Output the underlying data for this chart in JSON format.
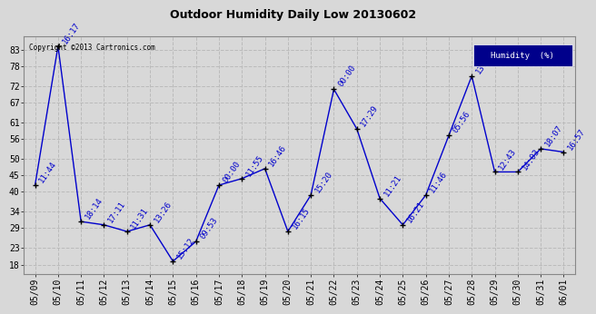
{
  "title": "Outdoor Humidity Daily Low 20130602",
  "copyright_text": "Copyright ©2013 Cartronics.com",
  "legend_label": "Humidity  (%)",
  "background_color": "#d8d8d8",
  "plot_bg_color": "#d8d8d8",
  "line_color": "#0000cc",
  "marker_color": "#000000",
  "legend_bg": "#00008b",
  "legend_fg": "#ffffff",
  "dates": [
    "05/09",
    "05/10",
    "05/11",
    "05/12",
    "05/13",
    "05/14",
    "05/15",
    "05/16",
    "05/17",
    "05/18",
    "05/19",
    "05/20",
    "05/21",
    "05/22",
    "05/23",
    "05/24",
    "05/25",
    "05/26",
    "05/27",
    "05/28",
    "05/29",
    "05/30",
    "05/31",
    "06/01"
  ],
  "values": [
    42,
    84,
    31,
    30,
    28,
    30,
    19,
    25,
    42,
    44,
    47,
    28,
    39,
    71,
    59,
    38,
    30,
    39,
    57,
    75,
    46,
    46,
    53,
    52
  ],
  "times": [
    "11:44",
    "16:17",
    "18:14",
    "17:11",
    "11:31",
    "13:26",
    "15:12",
    "09:53",
    "00:00",
    "11:55",
    "16:46",
    "16:15",
    "15:20",
    "00:00",
    "17:29",
    "11:21",
    "16:21",
    "11:46",
    "05:56",
    "13:38",
    "12:43",
    "14:03",
    "18:07",
    "16:57"
  ],
  "yticks": [
    18,
    23,
    29,
    34,
    40,
    45,
    50,
    56,
    61,
    67,
    72,
    78,
    83
  ],
  "ylim": [
    15,
    87
  ],
  "grid_color": "#bbbbbb",
  "title_fontsize": 9,
  "tick_fontsize": 7,
  "annot_fontsize": 6.5
}
